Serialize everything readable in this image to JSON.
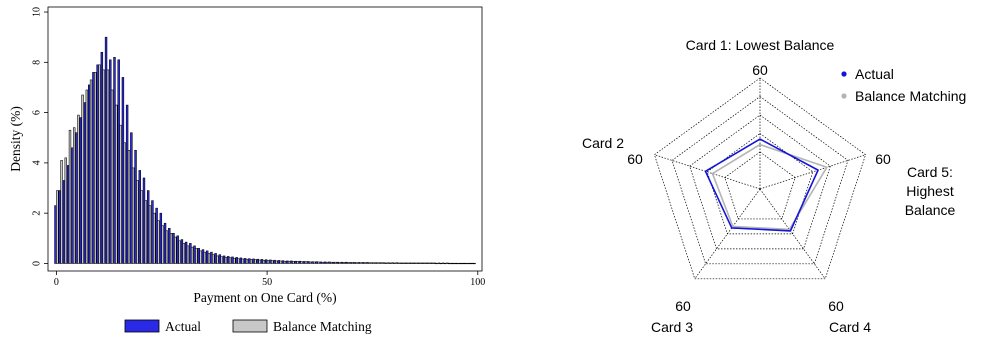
{
  "colors": {
    "actual": "#2a2ae6",
    "matching": "#c8c8c8",
    "radar_actual": "#1414dc",
    "radar_matching": "#b4b4b4"
  },
  "chart_data": [
    {
      "type": "bar",
      "xlabel": "Payment on One Card (%)",
      "ylabel": "Density (%)",
      "xlim": [
        -2,
        101
      ],
      "ylim": [
        -0.3,
        10.2
      ],
      "xticks": [
        0,
        50,
        100
      ],
      "yticks": [
        0,
        2,
        4,
        6,
        8,
        10
      ],
      "grid": false,
      "legend_position": "bottom",
      "bin_width": 1,
      "x": [
        0,
        1,
        2,
        3,
        4,
        5,
        6,
        7,
        8,
        9,
        10,
        11,
        12,
        13,
        14,
        15,
        16,
        17,
        18,
        19,
        20,
        21,
        22,
        23,
        24,
        25,
        26,
        27,
        28,
        29,
        30,
        31,
        32,
        33,
        34,
        35,
        36,
        37,
        38,
        39,
        40,
        41,
        42,
        43,
        44,
        45,
        46,
        47,
        48,
        49,
        50,
        51,
        52,
        53,
        54,
        55,
        56,
        57,
        58,
        59,
        60,
        61,
        62,
        63,
        64,
        65,
        66,
        67,
        68,
        69,
        70,
        71,
        72,
        73,
        74,
        75,
        76,
        77,
        78,
        79,
        80,
        81,
        82,
        83,
        84,
        85,
        86,
        87,
        88,
        89,
        90,
        91,
        92,
        93,
        94,
        95,
        96,
        97,
        98,
        99
      ],
      "series": [
        {
          "name": "Actual",
          "values": [
            2.3,
            2.9,
            3.3,
            3.9,
            4.6,
            5.2,
            5.8,
            6.4,
            7.1,
            7.6,
            7.9,
            8.4,
            9.0,
            8.1,
            8.2,
            8.1,
            7.4,
            6.3,
            5.2,
            4.5,
            3.7,
            3.4,
            2.9,
            2.5,
            2.2,
            2.0,
            1.6,
            1.4,
            1.2,
            1.1,
            0.95,
            0.85,
            0.8,
            0.7,
            0.6,
            0.55,
            0.5,
            0.45,
            0.4,
            0.35,
            0.3,
            0.28,
            0.26,
            0.24,
            0.22,
            0.2,
            0.19,
            0.18,
            0.17,
            0.16,
            0.15,
            0.14,
            0.13,
            0.12,
            0.11,
            0.1,
            0.1,
            0.09,
            0.09,
            0.08,
            0.08,
            0.07,
            0.07,
            0.06,
            0.06,
            0.06,
            0.05,
            0.05,
            0.05,
            0.05,
            0.04,
            0.04,
            0.04,
            0.04,
            0.04,
            0.03,
            0.03,
            0.03,
            0.03,
            0.03,
            0.03,
            0.03,
            0.02,
            0.02,
            0.02,
            0.02,
            0.02,
            0.02,
            0.02,
            0.02,
            0.02,
            0.02,
            0.02,
            0.02,
            0.01,
            0.01,
            0.01,
            0.01,
            0.01,
            0.01
          ]
        },
        {
          "name": "Balance Matching",
          "values": [
            2.9,
            4.1,
            4.2,
            5.3,
            5.4,
            5.9,
            6.7,
            6.9,
            7.3,
            7.6,
            7.9,
            7.7,
            7.7,
            6.9,
            6.3,
            5.5,
            4.8,
            4.5,
            3.8,
            3.3,
            2.9,
            2.5,
            2.3,
            2.0,
            1.7,
            1.5,
            1.3,
            1.2,
            1.05,
            0.9,
            0.8,
            0.7,
            0.65,
            0.6,
            0.5,
            0.45,
            0.4,
            0.35,
            0.3,
            0.27,
            0.25,
            0.23,
            0.21,
            0.19,
            0.18,
            0.17,
            0.16,
            0.15,
            0.14,
            0.13,
            0.12,
            0.11,
            0.1,
            0.1,
            0.09,
            0.09,
            0.08,
            0.08,
            0.07,
            0.07,
            0.06,
            0.06,
            0.06,
            0.05,
            0.05,
            0.05,
            0.05,
            0.04,
            0.04,
            0.04,
            0.04,
            0.03,
            0.03,
            0.03,
            0.03,
            0.03,
            0.03,
            0.03,
            0.02,
            0.02,
            0.02,
            0.02,
            0.02,
            0.02,
            0.02,
            0.02,
            0.02,
            0.02,
            0.02,
            0.02,
            0.01,
            0.01,
            0.01,
            0.01,
            0.01,
            0.01,
            0.01,
            0.01,
            0.01,
            0.01
          ]
        }
      ],
      "legend": [
        "Actual",
        "Balance Matching"
      ]
    },
    {
      "type": "radar",
      "axes": [
        {
          "label": [
            "Card 1: Lowest Balance"
          ],
          "max_label": "60"
        },
        {
          "label": [
            "Card 5:",
            "Highest",
            "Balance"
          ],
          "max_label": "60"
        },
        {
          "label": [
            "Card 4"
          ],
          "max_label": "60"
        },
        {
          "label": [
            "Card 3"
          ],
          "max_label": "60"
        },
        {
          "label": [
            "Card 2"
          ],
          "max_label": "60"
        }
      ],
      "r_max": 60,
      "rings": [
        20,
        30,
        40,
        50,
        60
      ],
      "legend_position": "top-right",
      "series": [
        {
          "name": "Actual",
          "values": [
            27,
            33,
            28,
            26,
            31
          ]
        },
        {
          "name": "Balance Matching",
          "values": [
            24,
            38,
            27,
            25,
            27
          ]
        }
      ]
    }
  ]
}
